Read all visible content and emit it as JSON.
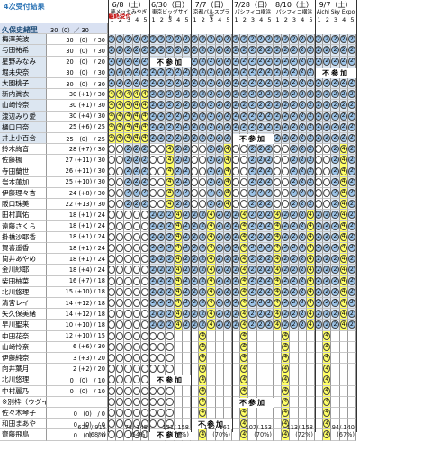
{
  "header": {
    "subtitle": "4次受付結果",
    "group1_name": "久保史緒里",
    "group1_count": "30（0）／ 30",
    "final_badge": "最終受付",
    "events": [
      {
        "date": "6/8（土）",
        "venue": "夢メッセみやぎ"
      },
      {
        "date": "6/30（日）",
        "venue": "東京ビッグサイト"
      },
      {
        "date": "7/7（日）",
        "venue": "京都パルスプラザ"
      },
      {
        "date": "7/28（日）",
        "venue": "パシフィコ横浜"
      },
      {
        "date": "8/10（土）",
        "venue": "パシフィコ横浜"
      },
      {
        "date": "9/7（土）",
        "venue": "Aichi Sky Expo"
      }
    ],
    "slots": [
      "1",
      "2",
      "3",
      "4",
      "5"
    ]
  },
  "labels": {
    "fuzanka": "不参加"
  },
  "members": [
    {
      "name": "梅澤美波",
      "count": "30　(0)　/ 30"
    },
    {
      "name": "与田祐希",
      "count": "30　(0)　/ 30"
    },
    {
      "name": "星野みなみ",
      "count": "20　(0)　/ 20"
    },
    {
      "name": "堀未央奈",
      "count": "30　(0)　/ 30"
    },
    {
      "name": "大園桃子",
      "count": "30　(0)　/ 30"
    },
    {
      "name": "新内眞衣",
      "count": "30 (+1) / 30"
    },
    {
      "name": "山崎怜奈",
      "count": "30 (+1) / 30"
    },
    {
      "name": "渡辺みり愛",
      "count": "30 (+4) / 30"
    },
    {
      "name": "樋口日奈",
      "count": "25 (+6) / 25"
    },
    {
      "name": "井上小百合",
      "count": "25　(0)　/ 25"
    },
    {
      "name": "鈴木絢音",
      "count": "28 (+7) / 30"
    },
    {
      "name": "佐藤楓",
      "count": "27 (+11) / 30"
    },
    {
      "name": "寺田蘭世",
      "count": "26 (+11) / 30"
    },
    {
      "name": "岩本蓮加",
      "count": "25 (+10) / 30"
    },
    {
      "name": "伊藤理々杏",
      "count": "24 (+8) / 30"
    },
    {
      "name": "阪口珠美",
      "count": "22 (+13) / 30"
    },
    {
      "name": "田村真佑",
      "count": "18 (+1) / 24"
    },
    {
      "name": "遠藤さくら",
      "count": "18 (+1) / 24"
    },
    {
      "name": "掛橋沙耶香",
      "count": "18 (+1) / 24"
    },
    {
      "name": "賀喜遥香",
      "count": "18 (+1) / 24"
    },
    {
      "name": "筒井あやめ",
      "count": "18 (+1) / 24"
    },
    {
      "name": "金川紗耶",
      "count": "18 (+4) / 24"
    },
    {
      "name": "柴田柚菜",
      "count": "16 (+7) / 18"
    },
    {
      "name": "北川悠理",
      "count": "15 (+10) / 18"
    },
    {
      "name": "清宮レイ",
      "count": "14 (+12) / 18"
    },
    {
      "name": "矢久保美緒",
      "count": "14 (+12) / 18"
    },
    {
      "name": "早川聖来",
      "count": "10 (+10) / 18"
    },
    {
      "name": "中田花奈",
      "count": "12 (+10) / 15"
    },
    {
      "name": "山崎怜奈",
      "count": "6 (+6) / 30"
    },
    {
      "name": "伊藤純奈",
      "count": "3 (+3) / 20"
    },
    {
      "name": "向井葉月",
      "count": "2 (+2) / 20"
    },
    {
      "name": "北川悠理",
      "count": "0　(0)　/ 10"
    },
    {
      "name": "中村麗乃",
      "count": "0　(0)　/ 10"
    },
    {
      "name": "※別枠（ウグイスティー",
      "count": ""
    },
    {
      "name": "佐々木琴子",
      "count": "0　(0)　/ 0"
    },
    {
      "name": "和田まあや",
      "count": "0　(0)　/ 0"
    },
    {
      "name": "齋藤飛鳥",
      "count": "0　(0)　/ 0"
    }
  ],
  "totals": [
    {
      "main": "625 / 915",
      "pct": "(68%)"
    },
    {
      "main": "78/ 145",
      "pct": "(54%)"
    },
    {
      "main": "121/ 158",
      "pct": "(77%)"
    },
    {
      "main": "112/ 161",
      "pct": "(70%)"
    },
    {
      "main": "107/ 153",
      "pct": "(70%)"
    },
    {
      "main": "113/ 158",
      "pct": "(72%)"
    },
    {
      "main": "94/ 140",
      "pct": "(67%)"
    }
  ],
  "colors": {
    "blue": "#9bc2e6",
    "yellow": "#ffff66",
    "group_bg": "#d9e1f2",
    "head_bg": "#dce6f1"
  }
}
